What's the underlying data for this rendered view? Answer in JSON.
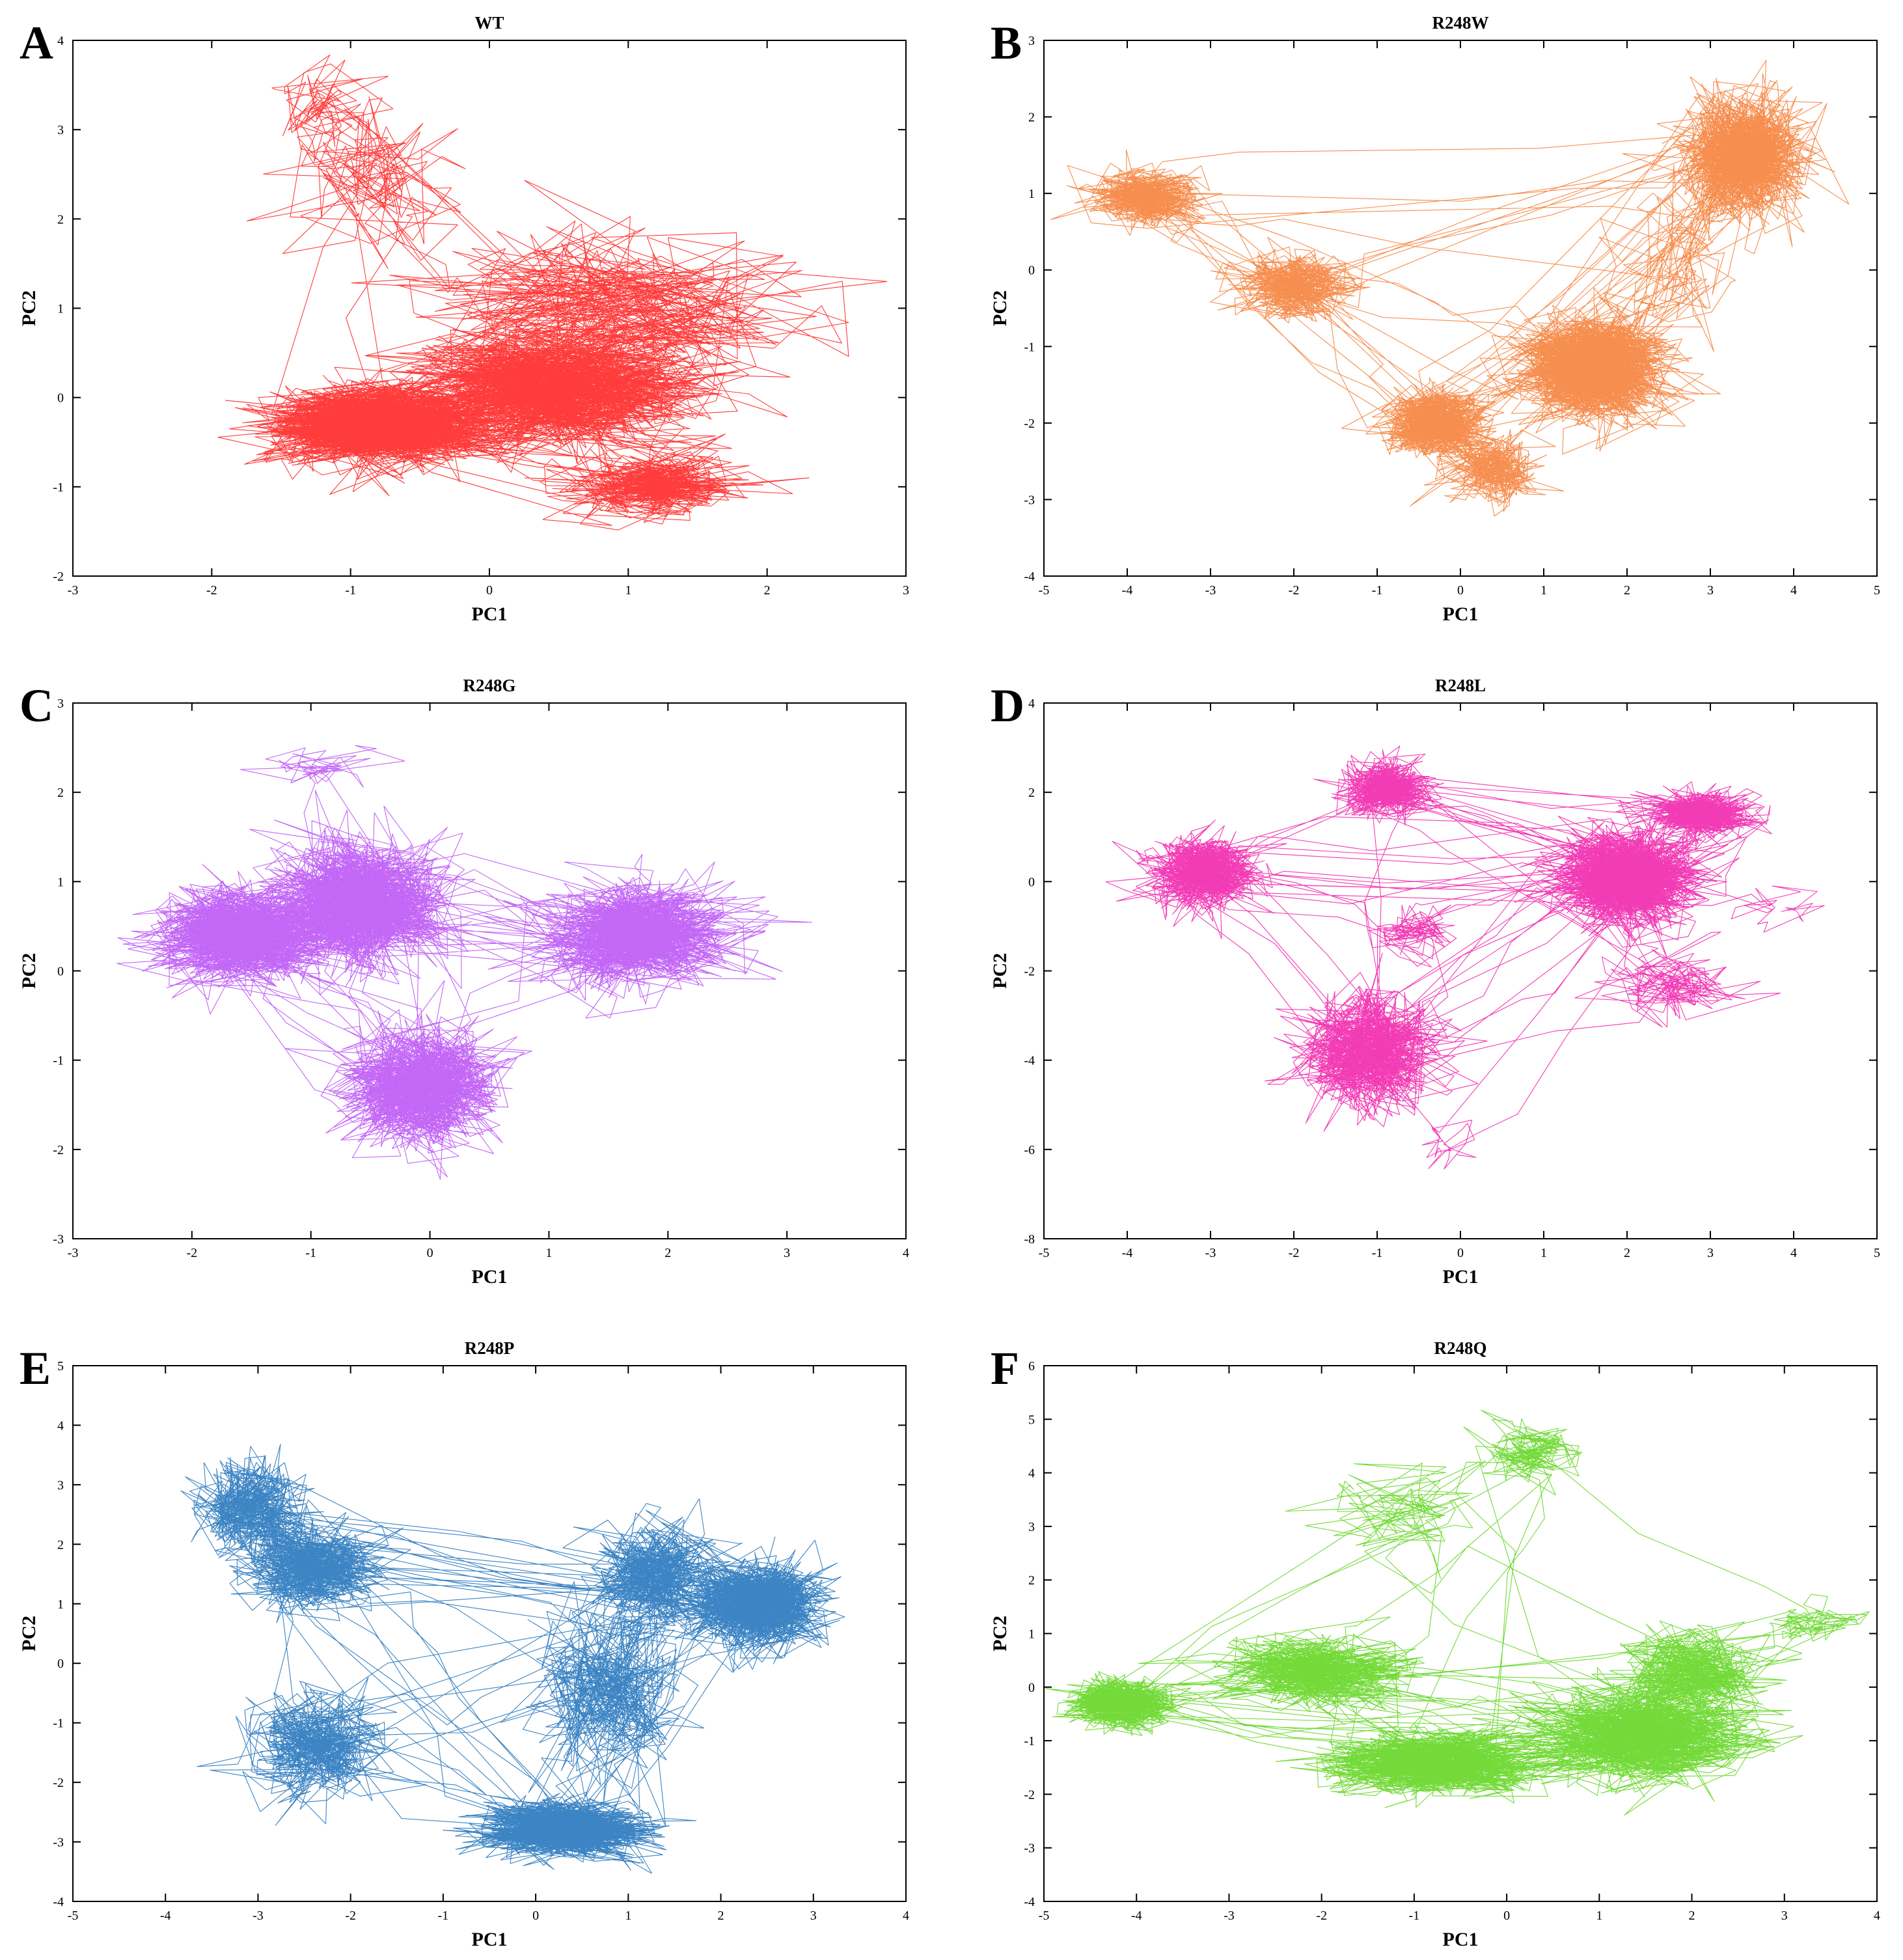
{
  "figure": {
    "description_label": "PCA trajectory projections"
  },
  "chart_data": [
    {
      "id": "A",
      "panel_letter": "A",
      "type": "line",
      "title": "WT",
      "xlabel": "PC1",
      "ylabel": "PC2",
      "xlim": [
        -3,
        3
      ],
      "ylim": [
        -2,
        4
      ],
      "xticks": [
        -3,
        -2,
        -1,
        0,
        1,
        2,
        3
      ],
      "yticks": [
        -2,
        -1,
        0,
        1,
        2,
        3,
        4
      ],
      "color": "#ff1a1a",
      "clusters": [
        {
          "center": [
            -0.8,
            -0.3
          ],
          "spread": [
            0.55,
            0.3
          ],
          "points": 2200
        },
        {
          "center": [
            0.5,
            0.1
          ],
          "spread": [
            0.7,
            0.45
          ],
          "points": 1800
        },
        {
          "center": [
            1.2,
            -1.0
          ],
          "spread": [
            0.45,
            0.25
          ],
          "points": 700
        },
        {
          "center": [
            -0.8,
            2.4
          ],
          "spread": [
            0.5,
            0.6
          ],
          "points": 500
        },
        {
          "center": [
            0.9,
            1.0
          ],
          "spread": [
            0.9,
            0.6
          ],
          "points": 500
        },
        {
          "center": [
            -1.2,
            3.2
          ],
          "spread": [
            0.3,
            0.4
          ],
          "points": 120
        }
      ]
    },
    {
      "id": "B",
      "panel_letter": "B",
      "type": "line",
      "title": "R248W",
      "xlabel": "PC1",
      "ylabel": "PC2",
      "xlim": [
        -5,
        5
      ],
      "ylim": [
        -4,
        3
      ],
      "xticks": [
        -5,
        -4,
        -3,
        -2,
        -1,
        0,
        1,
        2,
        3,
        4,
        5
      ],
      "yticks": [
        -4,
        -3,
        -2,
        -1,
        0,
        1,
        2,
        3
      ],
      "color": "#f57a30",
      "clusters": [
        {
          "center": [
            -3.8,
            0.95
          ],
          "spread": [
            0.45,
            0.25
          ],
          "points": 1600
        },
        {
          "center": [
            -2.0,
            -0.2
          ],
          "spread": [
            0.5,
            0.3
          ],
          "points": 700
        },
        {
          "center": [
            -0.3,
            -2.0
          ],
          "spread": [
            0.45,
            0.3
          ],
          "points": 900
        },
        {
          "center": [
            0.4,
            -2.6
          ],
          "spread": [
            0.4,
            0.3
          ],
          "points": 500
        },
        {
          "center": [
            1.6,
            -1.3
          ],
          "spread": [
            0.6,
            0.45
          ],
          "points": 1200
        },
        {
          "center": [
            3.4,
            1.5
          ],
          "spread": [
            0.5,
            0.55
          ],
          "points": 1500
        },
        {
          "center": [
            2.5,
            0.0
          ],
          "spread": [
            0.5,
            0.6
          ],
          "points": 500
        }
      ]
    },
    {
      "id": "C",
      "panel_letter": "C",
      "type": "line",
      "title": "R248G",
      "xlabel": "PC1",
      "ylabel": "PC2",
      "xlim": [
        -3,
        4
      ],
      "ylim": [
        -3,
        3
      ],
      "xticks": [
        -3,
        -2,
        -1,
        0,
        1,
        2,
        3,
        4
      ],
      "yticks": [
        -3,
        -2,
        -1,
        0,
        1,
        2,
        3
      ],
      "color": "#b84cf5",
      "clusters": [
        {
          "center": [
            -1.6,
            0.4
          ],
          "spread": [
            0.5,
            0.35
          ],
          "points": 1500
        },
        {
          "center": [
            -0.6,
            0.8
          ],
          "spread": [
            0.5,
            0.5
          ],
          "points": 1700
        },
        {
          "center": [
            -0.1,
            -1.3
          ],
          "spread": [
            0.45,
            0.45
          ],
          "points": 1500
        },
        {
          "center": [
            1.7,
            0.4
          ],
          "spread": [
            0.55,
            0.4
          ],
          "points": 1400
        },
        {
          "center": [
            -0.9,
            2.3
          ],
          "spread": [
            0.4,
            0.2
          ],
          "points": 200
        }
      ]
    },
    {
      "id": "D",
      "panel_letter": "D",
      "type": "line",
      "title": "R248L",
      "xlabel": "PC1",
      "ylabel": "PC2",
      "xlim": [
        -5,
        5
      ],
      "ylim": [
        -8,
        4
      ],
      "xticks": [
        -5,
        -4,
        -3,
        -2,
        -1,
        0,
        1,
        2,
        3,
        4,
        5
      ],
      "yticks": [
        -8,
        -6,
        -4,
        -2,
        0,
        2,
        4
      ],
      "color": "#f01aa8",
      "clusters": [
        {
          "center": [
            -3.1,
            0.2
          ],
          "spread": [
            0.45,
            0.55
          ],
          "points": 1500
        },
        {
          "center": [
            -0.9,
            2.1
          ],
          "spread": [
            0.35,
            0.4
          ],
          "points": 800
        },
        {
          "center": [
            -0.6,
            -1.1
          ],
          "spread": [
            0.35,
            0.35
          ],
          "points": 500
        },
        {
          "center": [
            2.0,
            0.1
          ],
          "spread": [
            0.6,
            0.7
          ],
          "points": 1300
        },
        {
          "center": [
            2.9,
            1.5
          ],
          "spread": [
            0.4,
            0.35
          ],
          "points": 700
        },
        {
          "center": [
            2.6,
            -2.3
          ],
          "spread": [
            0.6,
            0.6
          ],
          "points": 600
        },
        {
          "center": [
            -1.1,
            -3.8
          ],
          "spread": [
            0.6,
            0.9
          ],
          "points": 600
        },
        {
          "center": [
            -0.2,
            -5.8
          ],
          "spread": [
            0.3,
            0.5
          ],
          "points": 150
        },
        {
          "center": [
            3.8,
            -0.5
          ],
          "spread": [
            0.4,
            0.3
          ],
          "points": 200
        }
      ]
    },
    {
      "id": "E",
      "panel_letter": "E",
      "type": "line",
      "title": "R248P",
      "xlabel": "PC1",
      "ylabel": "PC2",
      "xlim": [
        -5,
        4
      ],
      "ylim": [
        -4,
        5
      ],
      "xticks": [
        -5,
        -4,
        -3,
        -2,
        -1,
        0,
        1,
        2,
        3,
        4
      ],
      "yticks": [
        -4,
        -3,
        -2,
        -1,
        0,
        1,
        2,
        3,
        4,
        5
      ],
      "color": "#1a6eb8",
      "clusters": [
        {
          "center": [
            -3.1,
            2.6
          ],
          "spread": [
            0.4,
            0.55
          ],
          "points": 1100
        },
        {
          "center": [
            -2.4,
            1.6
          ],
          "spread": [
            0.5,
            0.5
          ],
          "points": 600
        },
        {
          "center": [
            -2.4,
            -1.4
          ],
          "spread": [
            0.5,
            0.6
          ],
          "points": 1100
        },
        {
          "center": [
            0.3,
            -2.8
          ],
          "spread": [
            0.6,
            0.3
          ],
          "points": 1100
        },
        {
          "center": [
            0.8,
            -0.5
          ],
          "spread": [
            0.6,
            1.0
          ],
          "points": 800
        },
        {
          "center": [
            2.4,
            1.0
          ],
          "spread": [
            0.5,
            0.5
          ],
          "points": 1500
        },
        {
          "center": [
            1.3,
            1.5
          ],
          "spread": [
            0.5,
            0.6
          ],
          "points": 600
        }
      ]
    },
    {
      "id": "F",
      "panel_letter": "F",
      "type": "line",
      "title": "R248Q",
      "xlabel": "PC1",
      "ylabel": "PC2",
      "xlim": [
        -5,
        4
      ],
      "ylim": [
        -4,
        6
      ],
      "xticks": [
        -5,
        -4,
        -3,
        -2,
        -1,
        0,
        1,
        2,
        3,
        4
      ],
      "yticks": [
        -4,
        -3,
        -2,
        -1,
        0,
        1,
        2,
        3,
        4,
        5,
        6
      ],
      "color": "#5cd418",
      "clusters": [
        {
          "center": [
            -4.2,
            -0.3
          ],
          "spread": [
            0.35,
            0.3
          ],
          "points": 700
        },
        {
          "center": [
            -2.1,
            0.3
          ],
          "spread": [
            0.7,
            0.45
          ],
          "points": 700
        },
        {
          "center": [
            -0.8,
            -1.4
          ],
          "spread": [
            0.8,
            0.4
          ],
          "points": 1200
        },
        {
          "center": [
            1.5,
            -0.9
          ],
          "spread": [
            0.8,
            0.6
          ],
          "points": 1800
        },
        {
          "center": [
            2.0,
            0.3
          ],
          "spread": [
            0.6,
            0.6
          ],
          "points": 700
        },
        {
          "center": [
            0.3,
            4.4
          ],
          "spread": [
            0.4,
            0.35
          ],
          "points": 700
        },
        {
          "center": [
            -1.0,
            3.2
          ],
          "spread": [
            0.8,
            0.7
          ],
          "points": 200
        },
        {
          "center": [
            3.3,
            1.2
          ],
          "spread": [
            0.35,
            0.3
          ],
          "points": 250
        }
      ]
    }
  ]
}
